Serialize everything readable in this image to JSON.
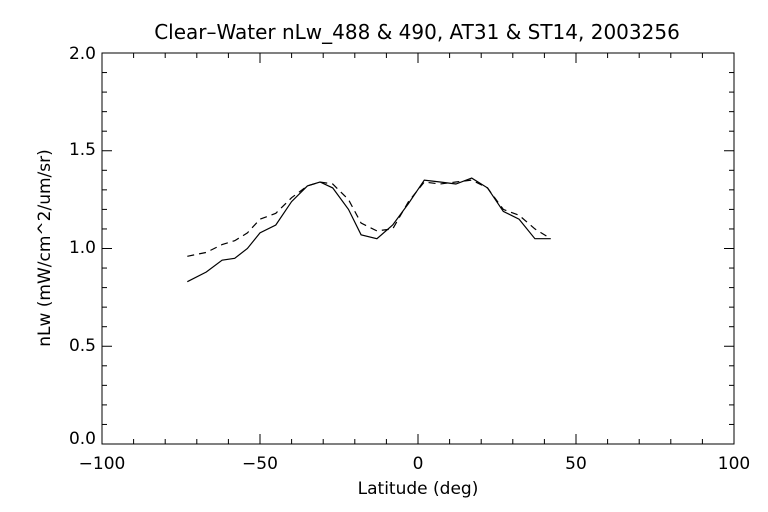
{
  "chart_data": {
    "type": "line",
    "title": "Clear–Water nLw_488 & 490, AT31 & ST14, 2003256",
    "xlabel": "Latitude (deg)",
    "ylabel": "nLw (mW/cm^2/um/sr)",
    "xlim": [
      -100,
      100
    ],
    "ylim": [
      0.0,
      2.0
    ],
    "x_ticks": [
      "−100",
      "−50",
      "0",
      "50",
      "100"
    ],
    "y_ticks": [
      "0.0",
      "0.5",
      "1.0",
      "1.5",
      "2.0"
    ],
    "grid": false,
    "series": [
      {
        "style": "solid",
        "color": "#000000",
        "x": [
          -73,
          -67,
          -62,
          -58,
          -54,
          -50,
          -45,
          -40,
          -35,
          -31,
          -27,
          -22,
          -18,
          -13,
          -8,
          -3,
          2,
          7,
          12,
          17,
          22,
          27,
          32,
          37,
          42
        ],
        "y": [
          0.83,
          0.88,
          0.94,
          0.95,
          1.0,
          1.08,
          1.12,
          1.24,
          1.32,
          1.34,
          1.31,
          1.2,
          1.07,
          1.05,
          1.12,
          1.23,
          1.35,
          1.34,
          1.33,
          1.36,
          1.31,
          1.19,
          1.15,
          1.05,
          1.05
        ]
      },
      {
        "style": "dashed",
        "color": "#000000",
        "x": [
          -73,
          -67,
          -62,
          -58,
          -54,
          -50,
          -45,
          -40,
          -35,
          -31,
          -27,
          -22,
          -18,
          -13,
          -8,
          -3,
          2,
          7,
          12,
          17,
          22,
          27,
          32,
          37,
          42
        ],
        "y": [
          0.96,
          0.98,
          1.02,
          1.04,
          1.08,
          1.15,
          1.18,
          1.26,
          1.32,
          1.34,
          1.33,
          1.25,
          1.13,
          1.09,
          1.1,
          1.24,
          1.34,
          1.33,
          1.34,
          1.35,
          1.31,
          1.2,
          1.17,
          1.1,
          1.05
        ]
      }
    ]
  }
}
